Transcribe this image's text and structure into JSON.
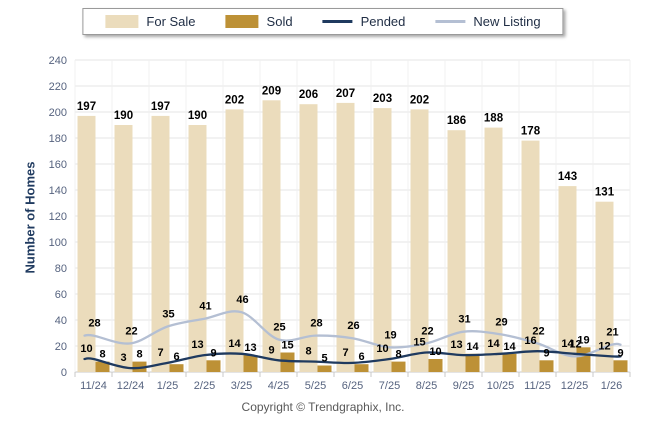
{
  "chart_data": {
    "type": "bar+line",
    "categories": [
      "11/24",
      "12/24",
      "1/25",
      "2/25",
      "3/25",
      "4/25",
      "5/25",
      "6/25",
      "7/25",
      "8/25",
      "9/25",
      "10/25",
      "11/25",
      "12/25",
      "1/26"
    ],
    "series": [
      {
        "name": "For Sale",
        "type": "bar",
        "color": "#EBDCBC",
        "values": [
          197,
          190,
          197,
          190,
          202,
          209,
          206,
          207,
          203,
          202,
          186,
          188,
          178,
          143,
          131
        ]
      },
      {
        "name": "Sold",
        "type": "bar",
        "color": "#BD9136",
        "values": [
          8,
          8,
          6,
          9,
          13,
          15,
          5,
          6,
          8,
          10,
          14,
          14,
          9,
          19,
          9
        ]
      },
      {
        "name": "Pended",
        "type": "line",
        "color": "#1F3A5F",
        "values": [
          10,
          3,
          7,
          13,
          14,
          9,
          8,
          7,
          10,
          15,
          13,
          14,
          16,
          14,
          12
        ]
      },
      {
        "name": "New Listing",
        "type": "line",
        "color": "#B4BFD3",
        "values": [
          28,
          22,
          35,
          41,
          46,
          25,
          28,
          26,
          19,
          22,
          31,
          29,
          22,
          12,
          21
        ]
      }
    ],
    "title": "",
    "xlabel": "",
    "ylabel": "Number of Homes",
    "ylim": [
      0,
      240
    ],
    "ytick_step": 20,
    "yticks": [
      0,
      20,
      40,
      60,
      80,
      100,
      120,
      140,
      160,
      180,
      200,
      220,
      240
    ],
    "grid": true,
    "legend_position": "top",
    "data_labels": true
  },
  "colors": {
    "axis_text": "#56637F",
    "data_label": "#000000",
    "gridline": "#E4E4E4",
    "gridline_vertical": "#F1F1F1",
    "baseline": "#C8C8C8",
    "ylabel_text": "#1F3A5F",
    "legend_text": "#1F2D44",
    "footer_text": "#595959"
  },
  "footer": {
    "copyright": "Copyright © Trendgraphix, Inc."
  }
}
